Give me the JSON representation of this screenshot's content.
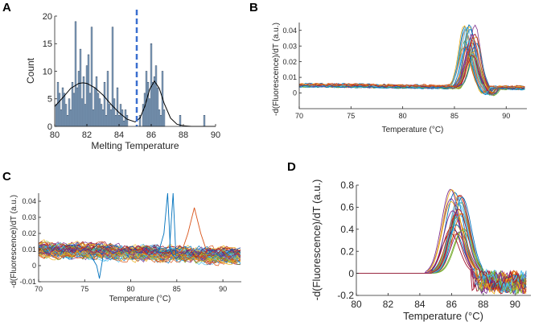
{
  "chart_data": [
    {
      "panel": "A",
      "type": "bar",
      "xlabel": "Melting Temperature",
      "ylabel": "Count",
      "xlim": [
        80,
        90
      ],
      "ylim": [
        0,
        20
      ],
      "xticks": [
        "80",
        "82",
        "84",
        "86",
        "88",
        "90"
      ],
      "yticks": [
        "0",
        "5",
        "10",
        "15",
        "20"
      ],
      "bar_x": [
        80.1,
        80.2,
        80.3,
        80.4,
        80.5,
        80.6,
        80.7,
        80.8,
        80.9,
        81.0,
        81.1,
        81.2,
        81.3,
        81.4,
        81.5,
        81.6,
        81.7,
        81.8,
        81.9,
        82.0,
        82.1,
        82.2,
        82.3,
        82.4,
        82.5,
        82.6,
        82.7,
        82.8,
        82.9,
        83.0,
        83.1,
        83.2,
        83.3,
        83.4,
        83.5,
        83.6,
        83.7,
        83.8,
        83.9,
        84.0,
        84.1,
        84.2,
        84.3,
        84.4,
        84.5,
        85.3,
        85.5,
        85.6,
        85.7,
        85.8,
        85.9,
        86.0,
        86.1,
        86.2,
        86.3,
        86.4,
        86.5,
        86.6,
        86.7,
        86.8,
        87.8,
        89.3
      ],
      "counts": [
        4,
        8,
        6,
        3,
        7,
        6,
        4,
        2,
        5,
        3,
        8,
        6,
        19,
        7,
        10,
        14,
        5,
        9,
        4,
        11,
        13,
        6,
        18,
        3,
        7,
        9,
        6,
        5,
        4,
        3,
        8,
        2,
        10,
        4,
        3,
        18,
        5,
        2,
        7,
        2,
        4,
        3,
        1,
        3,
        2,
        2,
        4,
        6,
        10,
        8,
        5,
        15,
        8,
        9,
        11,
        7,
        3,
        2,
        10,
        3,
        2,
        2
      ],
      "fit_curve": {
        "x": [
          80.0,
          80.5,
          81.0,
          81.5,
          81.75,
          82.0,
          82.5,
          83.0,
          83.5,
          84.0,
          84.5,
          85.0,
          85.3,
          85.6,
          85.9,
          86.2,
          86.5,
          86.8,
          87.2,
          87.6,
          88.0,
          88.5,
          89.0,
          90.0
        ],
        "y": [
          3.6,
          5.2,
          6.9,
          7.8,
          7.9,
          7.8,
          7.0,
          5.7,
          4.0,
          2.5,
          1.3,
          0.8,
          1.5,
          3.6,
          6.7,
          8.2,
          6.9,
          4.2,
          1.5,
          0.4,
          0.1,
          0.0,
          0.0,
          0.0
        ]
      },
      "threshold_line_x": 85.1,
      "colors": {
        "bar": "#93b4d4",
        "bar_edge": "#2b3f5a",
        "fit": "#000000",
        "threshold": "#3a6fcf"
      }
    },
    {
      "panel": "B",
      "type": "line",
      "xlabel": "Temperature (°C)",
      "ylabel": "-d(Fluorescence)/dT (a.u.)",
      "xlim": [
        70,
        92
      ],
      "ylim": [
        -0.01,
        0.045
      ],
      "xticks": [
        "70",
        "75",
        "80",
        "85",
        "90"
      ],
      "yticks": [
        "0",
        "0.01",
        "0.02",
        "0.03",
        "0.04"
      ],
      "series_count": 30,
      "baseline": 0.005,
      "peak_center_range": [
        85.9,
        87.1
      ],
      "peak_height_range": [
        0.02,
        0.041
      ]
    },
    {
      "panel": "C",
      "type": "line",
      "xlabel": "Temperature (°C)",
      "ylabel": "-d(Fluorescence)/dT (a.u.)",
      "xlim": [
        70,
        92
      ],
      "ylim": [
        -0.01,
        0.045
      ],
      "xticks": [
        "70",
        "75",
        "80",
        "85",
        "90"
      ],
      "yticks": [
        "-0.01",
        "0",
        "0.01",
        "0.02",
        "0.03",
        "0.04"
      ],
      "series_count": 60,
      "baseline": 0.01,
      "noise_amplitude": 0.005
    },
    {
      "panel": "D",
      "type": "line",
      "xlabel": "Temperature (°C)",
      "ylabel": "-d(Fluorescence)/dT (a.u.)",
      "xlim": [
        80,
        91
      ],
      "ylim": [
        -0.2,
        0.8
      ],
      "xticks": [
        "80",
        "82",
        "84",
        "86",
        "88",
        "90"
      ],
      "yticks": [
        "-0.2",
        "0",
        "0.2",
        "0.4",
        "0.6",
        "0.8"
      ],
      "series_count": 28,
      "peak_center_range": [
        85.9,
        86.8
      ],
      "peak_height_range": [
        0.36,
        0.78
      ]
    }
  ],
  "palette": [
    "#0072bd",
    "#d95319",
    "#edb120",
    "#7e2f8e",
    "#77ac30",
    "#4dbeee",
    "#a2142f"
  ]
}
